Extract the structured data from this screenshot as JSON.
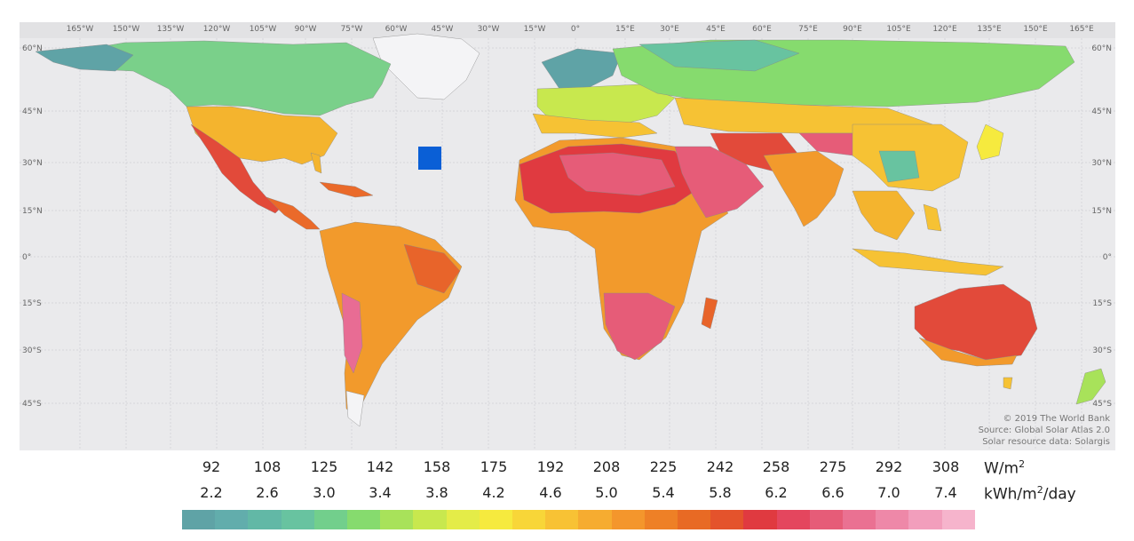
{
  "map": {
    "longitude_labels": [
      "165°W",
      "150°W",
      "135°W",
      "120°W",
      "105°W",
      "90°W",
      "75°W",
      "60°W",
      "45°W",
      "30°W",
      "15°W",
      "0°",
      "15°E",
      "30°E",
      "45°E",
      "60°E",
      "75°E",
      "90°E",
      "105°E",
      "120°E",
      "135°E",
      "150°E",
      "165°E"
    ],
    "latitude_labels": [
      "60°N",
      "45°N",
      "30°N",
      "15°N",
      "0°",
      "15°S",
      "30°S",
      "45°S"
    ],
    "credits": {
      "line1": "© 2019 The World Bank",
      "line2": "Source: Global Solar Atlas 2.0",
      "line3": "Solar resource data: Solargis"
    },
    "marker_color": "#0a5fd6"
  },
  "legend": {
    "row1_values": [
      "92",
      "108",
      "125",
      "142",
      "158",
      "175",
      "192",
      "208",
      "225",
      "242",
      "258",
      "275",
      "292",
      "308"
    ],
    "row1_unit_base": "W/m",
    "row1_unit_sup": "2",
    "row2_values": [
      "2.2",
      "2.6",
      "3.0",
      "3.4",
      "3.8",
      "4.2",
      "4.6",
      "5.0",
      "5.4",
      "5.8",
      "6.2",
      "6.6",
      "7.0",
      "7.4"
    ],
    "row2_unit_pre": "kWh/m",
    "row2_unit_sup": "2",
    "row2_unit_post": "/day",
    "colors": [
      "#5fa3a6",
      "#62adac",
      "#62b8a6",
      "#68c3a0",
      "#72cf8c",
      "#86db6e",
      "#a8e25a",
      "#c8e84e",
      "#e4ec48",
      "#f6ea3e",
      "#f8d638",
      "#f8c234",
      "#f6ac30",
      "#f4962c",
      "#ee8026",
      "#e86a24",
      "#e4532c",
      "#e03a40",
      "#e4465e",
      "#e65c78",
      "#ea7192",
      "#ee88a8",
      "#f29ebc",
      "#f6b4cc"
    ]
  }
}
